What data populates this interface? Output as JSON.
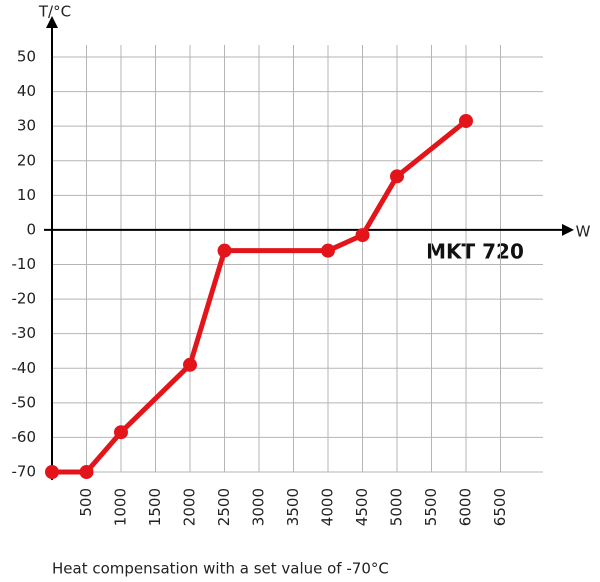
{
  "chart_data": {
    "type": "line",
    "y_label": "T/°C",
    "x_label": "W",
    "annotation": "MKT 720",
    "caption": "Heat compensation with a set value of -70°C",
    "x": [
      0,
      500,
      1000,
      2000,
      2500,
      4000,
      4500,
      5000,
      6000
    ],
    "series": [
      {
        "name": "MKT 720",
        "color": "#e3151a",
        "values": [
          -70,
          -70,
          -58.5,
          -39,
          -6,
          -6,
          -1.5,
          15.5,
          31.5
        ]
      }
    ],
    "xlim": [
      0,
      7000
    ],
    "ylim": [
      -70,
      50
    ],
    "xticks": [
      500,
      1000,
      1500,
      2000,
      2500,
      3000,
      3500,
      4000,
      4500,
      5000,
      5500,
      6000,
      6500
    ],
    "yticks": [
      -70,
      -60,
      -50,
      -40,
      -30,
      -20,
      -10,
      0,
      10,
      20,
      30,
      40,
      50
    ],
    "grid": true
  }
}
